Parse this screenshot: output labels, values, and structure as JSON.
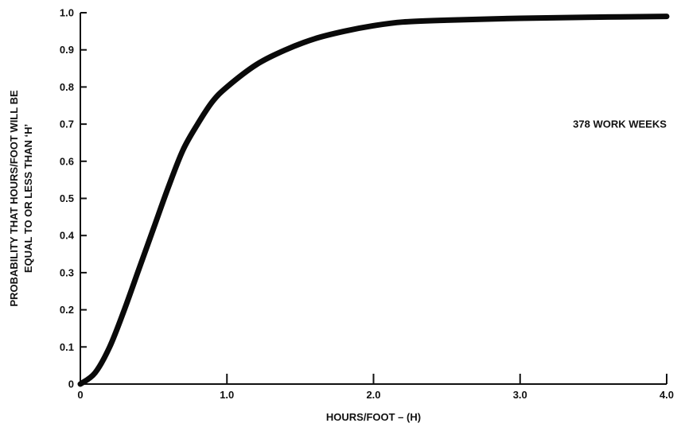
{
  "chart_data": {
    "type": "line",
    "xlabel": "HOURS/FOOT – (H)",
    "ylabel_lines": [
      "PROBABILITY THAT HOURS/FOOT WILL BE",
      "EQUAL TO OR LESS THAN ‘H’"
    ],
    "xlim": [
      0,
      4.0
    ],
    "ylim": [
      0,
      1.0
    ],
    "x_ticks": [
      0,
      1.0,
      2.0,
      3.0,
      4.0
    ],
    "x_tick_labels": [
      "0",
      "1.0",
      "2.0",
      "3.0",
      "4.0"
    ],
    "y_ticks": [
      0,
      0.1,
      0.2,
      0.3,
      0.4,
      0.5,
      0.6,
      0.7,
      0.8,
      0.9,
      1.0
    ],
    "y_tick_labels": [
      "0",
      "0.1",
      "0.2",
      "0.3",
      "0.4",
      "0.5",
      "0.6",
      "0.7",
      "0.8",
      "0.9",
      "1.0"
    ],
    "grid": false,
    "annotations": [
      {
        "text": "378 WORK WEEKS",
        "x": 3.68,
        "y": 0.7
      }
    ],
    "series": [
      {
        "x": [
          0,
          0.1,
          0.2,
          0.3,
          0.4,
          0.5,
          0.6,
          0.7,
          0.8,
          0.9,
          1.0,
          1.2,
          1.4,
          1.6,
          1.8,
          2.0,
          2.2,
          2.5,
          3.0,
          3.5,
          4.0
        ],
        "values": [
          0,
          0.03,
          0.1,
          0.2,
          0.31,
          0.42,
          0.53,
          0.63,
          0.7,
          0.76,
          0.8,
          0.86,
          0.9,
          0.93,
          0.95,
          0.965,
          0.975,
          0.98,
          0.985,
          0.988,
          0.99
        ]
      }
    ]
  }
}
